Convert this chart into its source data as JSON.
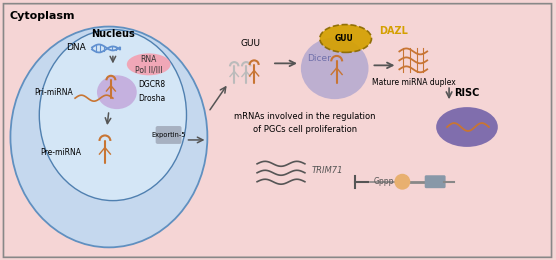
{
  "bg_color": "#f5d5d5",
  "cytoplasm_label": "Cytoplasm",
  "nucleus_label": "Nucleus",
  "cell_fill": "#c5d8ee",
  "rna_pol_fill": "#f4a0b0",
  "rna_pol_label": "RNA\nPol II/III",
  "dgcr8_label": "DGCR8",
  "drosha_label": "Drosha",
  "exportin_label": "Exportin-5",
  "pri_mirna_label": "Pri-miRNA",
  "pre_mirna_label": "Pre-miRNA",
  "dna_label": "DNA",
  "guu_label": "GUU",
  "dazl_label": "DAZL",
  "dicer_label": "Dicer",
  "mature_label": "Mature miRNA duplex",
  "risc_label": "RISC",
  "mrna_label": "mRNAs involved in the regulation\nof PGCs cell proliferation",
  "trim71_label": "TRIM71",
  "gppp_label": "Gppp",
  "orange_color": "#c87533",
  "gold_color": "#d4a000",
  "light_gray": "#bbbbbb",
  "arrow_color": "#555555"
}
